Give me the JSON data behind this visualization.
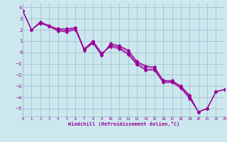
{
  "xlabel": "Windchill (Refroidissement éolien,°C)",
  "line_color": "#990099",
  "bg_color": "#cce8ee",
  "grid_color": "#99bbcc",
  "lines": [
    {
      "x": [
        0,
        1,
        2,
        3,
        4,
        5,
        6,
        7,
        8,
        9,
        10,
        11,
        12,
        13,
        14,
        15,
        16,
        17,
        18,
        19,
        20,
        21,
        22,
        23
      ],
      "y": [
        3.7,
        2.0,
        2.6,
        2.3,
        1.9,
        1.8,
        2.0,
        0.2,
        0.8,
        -0.3,
        0.8,
        0.6,
        0.2,
        -0.8,
        -1.2,
        -1.3,
        -2.5,
        -2.6,
        -3.0,
        -3.8,
        -5.3,
        -5.0,
        -3.5,
        -3.3
      ]
    },
    {
      "x": [
        0,
        1,
        2,
        3,
        4,
        5,
        6,
        7,
        8,
        9,
        10,
        11,
        12,
        13,
        14,
        15,
        16,
        17,
        18,
        19,
        20,
        21,
        22,
        23
      ],
      "y": [
        3.7,
        2.0,
        2.6,
        2.3,
        2.0,
        1.9,
        2.1,
        0.2,
        0.9,
        -0.2,
        0.7,
        0.5,
        0.1,
        -0.9,
        -1.3,
        -1.4,
        -2.5,
        -2.5,
        -3.0,
        -3.9,
        -5.3,
        -5.0,
        -3.5,
        -3.3
      ]
    },
    {
      "x": [
        0,
        1,
        2,
        3,
        4,
        5,
        6,
        7,
        8,
        9,
        10,
        11,
        12,
        13,
        14,
        15,
        16,
        17,
        18,
        19,
        20,
        21,
        22,
        23
      ],
      "y": [
        3.7,
        2.0,
        2.7,
        2.3,
        2.0,
        2.0,
        2.2,
        0.3,
        1.0,
        -0.1,
        0.6,
        0.4,
        -0.1,
        -1.0,
        -1.5,
        -1.5,
        -2.6,
        -2.6,
        -3.1,
        -4.0,
        -5.3,
        -5.0,
        -3.5,
        -3.3
      ]
    },
    {
      "x": [
        0,
        1,
        2,
        3,
        4,
        5,
        6,
        7,
        8,
        9,
        10,
        11,
        12,
        13,
        14,
        15,
        16,
        17,
        18,
        19,
        20,
        21,
        22,
        23
      ],
      "y": [
        3.7,
        2.0,
        2.7,
        2.4,
        2.1,
        2.1,
        2.2,
        0.3,
        1.0,
        -0.1,
        0.5,
        0.3,
        -0.2,
        -1.1,
        -1.6,
        -1.6,
        -2.7,
        -2.7,
        -3.2,
        -4.1,
        -5.3,
        -5.0,
        -3.5,
        -3.3
      ]
    }
  ],
  "xlim": [
    0,
    23
  ],
  "ylim": [
    -5.7,
    4.4
  ],
  "yticks": [
    -5,
    -4,
    -3,
    -2,
    -1,
    0,
    1,
    2,
    3,
    4
  ],
  "xticks": [
    0,
    1,
    2,
    3,
    4,
    5,
    6,
    7,
    8,
    9,
    10,
    11,
    12,
    13,
    14,
    15,
    16,
    17,
    18,
    19,
    20,
    21,
    22,
    23
  ],
  "marker": "D",
  "markersize": 1.8,
  "linewidth": 0.7
}
